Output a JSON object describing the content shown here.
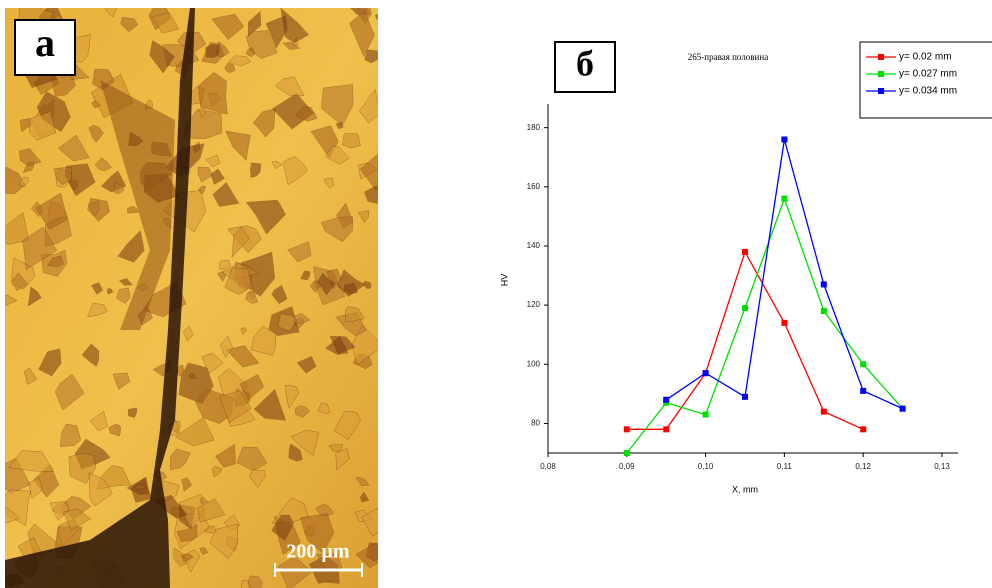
{
  "panel_a": {
    "label": "а",
    "scale_bar": "200 µm"
  },
  "chart_data": {
    "type": "line",
    "panel_label": "б",
    "title": "265-правая половина",
    "x_label": "X, mm",
    "y_label": "HV",
    "xlim": [
      0.08,
      0.13
    ],
    "ylim": [
      70,
      188
    ],
    "xticks": [
      {
        "value": 0.08,
        "label": "0,08"
      },
      {
        "value": 0.09,
        "label": "0,09"
      },
      {
        "value": 0.1,
        "label": "0,10"
      },
      {
        "value": 0.11,
        "label": "0,11"
      },
      {
        "value": 0.12,
        "label": "0,12"
      },
      {
        "value": 0.13,
        "label": "0,13"
      }
    ],
    "yticks": [
      80,
      100,
      120,
      140,
      160,
      180
    ],
    "series": [
      {
        "name": "y= 0.02 mm",
        "color": "#ff0000",
        "x": [
          0.09,
          0.095,
          0.1,
          0.105,
          0.11,
          0.115,
          0.12
        ],
        "values": [
          78,
          78,
          97,
          138,
          114,
          84,
          78
        ]
      },
      {
        "name": "y= 0.027 mm",
        "color": "#00e000",
        "x": [
          0.09,
          0.095,
          0.1,
          0.105,
          0.11,
          0.115,
          0.12,
          0.125
        ],
        "values": [
          70,
          87,
          83,
          119,
          156,
          118,
          100,
          85
        ]
      },
      {
        "name": "y= 0.034 mm",
        "color": "#0000ff",
        "x": [
          0.095,
          0.1,
          0.105,
          0.11,
          0.115,
          0.12,
          0.125
        ],
        "values": [
          88,
          97,
          89,
          176,
          127,
          91,
          85
        ]
      }
    ]
  }
}
